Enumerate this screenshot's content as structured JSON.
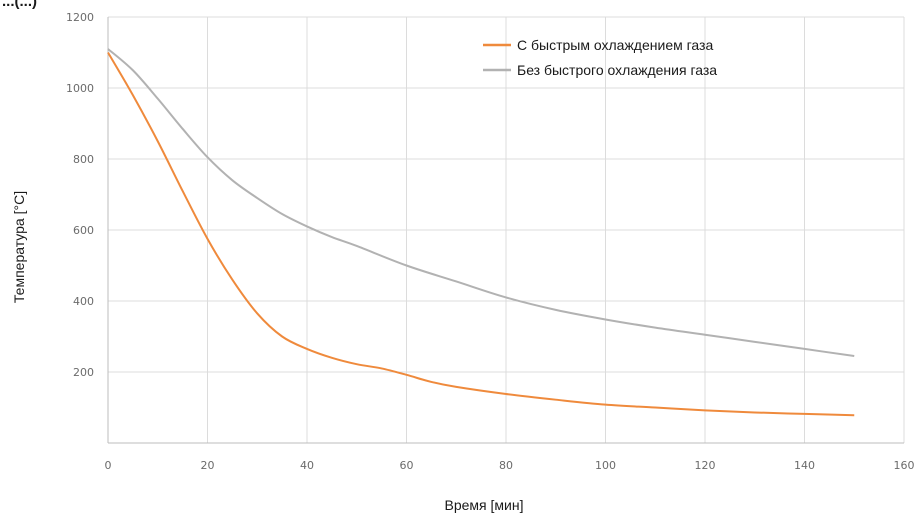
{
  "cut_title": "...(...)",
  "chart_data": {
    "type": "line",
    "title": "",
    "xlabel": "Время [мин]",
    "ylabel": "Температура [°C]",
    "xlim": [
      0,
      160
    ],
    "ylim": [
      0,
      1200
    ],
    "x_ticks": [
      0,
      20,
      40,
      60,
      80,
      100,
      120,
      140,
      160
    ],
    "y_ticks": [
      200,
      400,
      600,
      800,
      1000,
      1200
    ],
    "grid": true,
    "legend_position": "top-right",
    "series": [
      {
        "name": "С быстрым охлаждением газа",
        "color": "#ef8a3c",
        "x": [
          0,
          5,
          10,
          15,
          20,
          25,
          30,
          35,
          40,
          45,
          50,
          55,
          60,
          65,
          70,
          80,
          90,
          100,
          110,
          120,
          130,
          140,
          150
        ],
        "y": [
          1100,
          980,
          850,
          710,
          575,
          460,
          365,
          300,
          265,
          240,
          222,
          210,
          192,
          172,
          158,
          138,
          122,
          108,
          100,
          92,
          86,
          82,
          78
        ]
      },
      {
        "name": "Без быстрого охлаждения газа",
        "color": "#b2b2b2",
        "x": [
          0,
          5,
          10,
          15,
          20,
          25,
          30,
          35,
          40,
          45,
          50,
          60,
          70,
          80,
          90,
          100,
          110,
          120,
          130,
          140,
          150
        ],
        "y": [
          1110,
          1050,
          970,
          885,
          805,
          740,
          690,
          645,
          610,
          580,
          555,
          500,
          455,
          410,
          375,
          348,
          325,
          305,
          285,
          265,
          245
        ]
      }
    ]
  }
}
